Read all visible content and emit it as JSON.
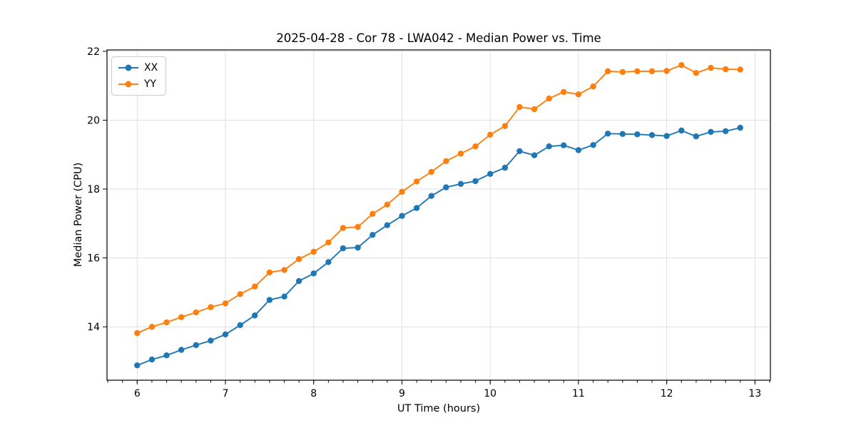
{
  "chart_data": {
    "type": "line",
    "title": "2025-04-28 - Cor 78 - LWA042 - Median Power vs. Time",
    "xlabel": "UT Time (hours)",
    "ylabel": "Median Power (CPU)",
    "xlim": [
      5.658,
      13.175
    ],
    "ylim": [
      12.45,
      22.04
    ],
    "xticks": [
      6,
      7,
      8,
      9,
      10,
      11,
      12,
      13
    ],
    "yticks": [
      14,
      16,
      18,
      20,
      22
    ],
    "x_minor_tick_step": 0.16667,
    "grid": true,
    "legend_position": "upper left",
    "marker": "circle",
    "x": [
      6.0,
      6.167,
      6.333,
      6.5,
      6.667,
      6.833,
      7.0,
      7.167,
      7.333,
      7.5,
      7.667,
      7.833,
      8.0,
      8.167,
      8.333,
      8.5,
      8.667,
      8.833,
      9.0,
      9.167,
      9.333,
      9.5,
      9.667,
      9.833,
      10.0,
      10.167,
      10.333,
      10.5,
      10.667,
      10.833,
      11.0,
      11.167,
      11.333,
      11.5,
      11.667,
      11.833,
      12.0,
      12.167,
      12.333,
      12.5,
      12.667,
      12.833
    ],
    "series": [
      {
        "name": "XX",
        "color": "#1f77b4",
        "values": [
          12.88,
          13.05,
          13.17,
          13.33,
          13.47,
          13.6,
          13.78,
          14.05,
          14.33,
          14.78,
          14.88,
          15.33,
          15.55,
          15.88,
          16.28,
          16.3,
          16.67,
          16.95,
          17.22,
          17.45,
          17.8,
          18.05,
          18.15,
          18.23,
          18.44,
          18.62,
          19.1,
          18.98,
          19.24,
          19.27,
          19.13,
          19.28,
          19.61,
          19.6,
          19.59,
          19.57,
          19.54,
          19.7,
          19.53,
          19.66,
          19.68,
          19.78
        ]
      },
      {
        "name": "YY",
        "color": "#ff7f0e",
        "values": [
          13.82,
          14.0,
          14.13,
          14.28,
          14.42,
          14.57,
          14.68,
          14.95,
          15.17,
          15.58,
          15.65,
          15.97,
          16.18,
          16.45,
          16.87,
          16.9,
          17.28,
          17.55,
          17.92,
          18.22,
          18.5,
          18.81,
          19.03,
          19.24,
          19.58,
          19.83,
          20.38,
          20.32,
          20.63,
          20.82,
          20.75,
          20.98,
          21.42,
          21.4,
          21.42,
          21.42,
          21.43,
          21.6,
          21.37,
          21.52,
          21.48,
          21.47
        ]
      }
    ]
  }
}
